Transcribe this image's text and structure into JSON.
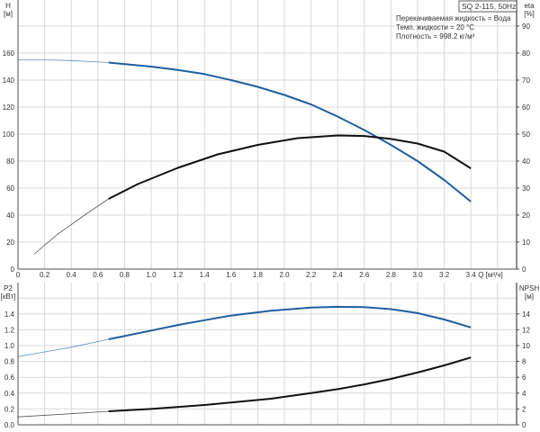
{
  "chart_data": [
    {
      "type": "line",
      "title": "SQ 2-115, 50Hz",
      "info": [
        "Перекачиваемая жидкость = Вода",
        "Темп. жидкости = 20 °C",
        "Плотность = 998.2 кг/м³"
      ],
      "xlabel": "Q [м³/ч]",
      "ylabel_left": [
        "H",
        "[м]"
      ],
      "ylabel_right": [
        "eta",
        "[%]"
      ],
      "xlim": [
        0,
        3.74
      ],
      "ylim_left": [
        0,
        195
      ],
      "ylim_right": [
        0,
        97.5
      ],
      "xticks": [
        "0",
        "0.2",
        "0.4",
        "0.6",
        "0.8",
        "1.0",
        "1.2",
        "1.4",
        "1.6",
        "1.8",
        "2.0",
        "2.2",
        "2.4",
        "2.6",
        "2.8",
        "3.0",
        "3.2",
        "3.4"
      ],
      "yticks_left": [
        "0",
        "20",
        "40",
        "60",
        "80",
        "100",
        "120",
        "140",
        "160"
      ],
      "yticks_right": [
        "0",
        "10",
        "20",
        "30",
        "40",
        "50",
        "60",
        "70",
        "80",
        "90"
      ],
      "grid": true,
      "series": [
        {
          "key": "H",
          "axis": "left",
          "color": "#1f5f9e",
          "operating_from": 0.68,
          "x": [
            0,
            0.2,
            0.4,
            0.68,
            1.0,
            1.2,
            1.4,
            1.6,
            1.8,
            2.0,
            2.2,
            2.4,
            2.6,
            2.8,
            3.0,
            3.2,
            3.4
          ],
          "y": [
            155,
            155,
            154.5,
            153,
            150,
            147.5,
            144.5,
            140,
            135,
            129,
            122,
            113,
            103,
            92,
            80,
            66,
            50
          ]
        },
        {
          "key": "eta",
          "axis": "right",
          "color": "#111111",
          "operating_from": 0.68,
          "x": [
            0.12,
            0.3,
            0.5,
            0.68,
            0.9,
            1.2,
            1.5,
            1.8,
            2.1,
            2.4,
            2.6,
            2.8,
            3.0,
            3.2,
            3.4
          ],
          "y": [
            5.5,
            13,
            20,
            26,
            31.5,
            37.5,
            42.5,
            46,
            48.5,
            49.5,
            49.3,
            48.2,
            46.5,
            43.5,
            37.3
          ]
        }
      ]
    },
    {
      "type": "line",
      "xlim": [
        0,
        3.74
      ],
      "ylabel_left": [
        "P2",
        "[кВт]"
      ],
      "ylabel_right": [
        "NPSH",
        "[м]"
      ],
      "ylim_left": [
        0,
        1.6
      ],
      "ylim_right": [
        0,
        16
      ],
      "yticks_left": [
        "0.0",
        "0.2",
        "0.4",
        "0.6",
        "0.8",
        "1.0",
        "1.2",
        "1.4"
      ],
      "yticks_right": [
        "0",
        "2",
        "4",
        "6",
        "8",
        "10",
        "12",
        "14"
      ],
      "grid": true,
      "series": [
        {
          "key": "P2",
          "axis": "left",
          "color": "#1f5f9e",
          "operating_from": 0.68,
          "x": [
            0,
            0.2,
            0.4,
            0.68,
            1.0,
            1.2,
            1.4,
            1.6,
            1.9,
            2.2,
            2.4,
            2.6,
            2.8,
            3.0,
            3.2,
            3.4
          ],
          "y": [
            0.86,
            0.92,
            0.98,
            1.08,
            1.19,
            1.26,
            1.32,
            1.38,
            1.44,
            1.48,
            1.49,
            1.485,
            1.46,
            1.41,
            1.33,
            1.23
          ]
        },
        {
          "key": "NPSH",
          "axis": "right",
          "color": "#111111",
          "operating_from": 0.68,
          "x": [
            0,
            0.4,
            0.68,
            1.0,
            1.4,
            1.9,
            2.2,
            2.4,
            2.6,
            2.8,
            3.0,
            3.2,
            3.4
          ],
          "y": [
            1.0,
            1.4,
            1.7,
            2.0,
            2.5,
            3.3,
            4.0,
            4.5,
            5.1,
            5.8,
            6.6,
            7.5,
            8.5
          ]
        }
      ]
    }
  ]
}
